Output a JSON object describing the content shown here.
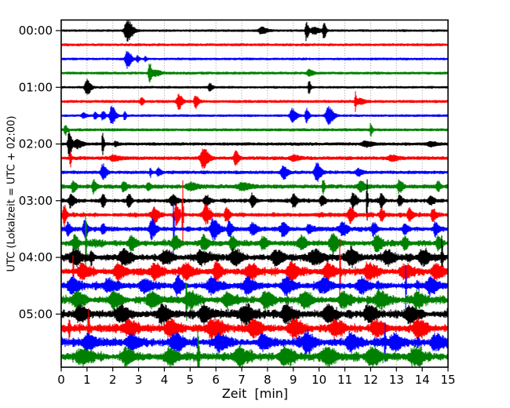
{
  "chart_data": {
    "type": "line",
    "subtype": "seismogram_helicorder_dayplot",
    "title": "",
    "xlabel": "Zeit  [min]",
    "ylabel": "UTC (Lokalzeit = UTC + 02:00)",
    "x_range": [
      0,
      15
    ],
    "x_ticks": [
      0,
      1,
      2,
      3,
      4,
      5,
      6,
      7,
      8,
      9,
      10,
      11,
      12,
      13,
      14,
      15
    ],
    "y_tick_labels": [
      "00:00",
      "01:00",
      "02:00",
      "03:00",
      "04:00",
      "05:00"
    ],
    "y_tick_rows": [
      0,
      4,
      8,
      12,
      16,
      20
    ],
    "minutes_per_line": 15,
    "grid": {
      "vertical_dotted": true,
      "color": "#909090"
    },
    "colors": {
      "border": "#000000",
      "background": "#ffffff"
    },
    "trace_color_cycle": [
      "#000000",
      "#ff0000",
      "#0000ff",
      "#008000"
    ],
    "events_format": "[start_minute, peak_amplitude_px, half_width_min]",
    "traces": [
      {
        "start": "00:00",
        "color": "#000000",
        "noise": 1.0,
        "events": [
          [
            2.55,
            13,
            0.22
          ],
          [
            7.75,
            4,
            0.22
          ],
          [
            9.5,
            12,
            0.09
          ],
          [
            9.8,
            4,
            0.25
          ],
          [
            10.18,
            11,
            0.08
          ]
        ]
      },
      {
        "start": "00:15",
        "color": "#ff0000",
        "noise": 1.2,
        "events": []
      },
      {
        "start": "00:30",
        "color": "#0000ff",
        "noise": 1.0,
        "events": [
          [
            2.55,
            11,
            0.16
          ],
          [
            2.95,
            4,
            0.07
          ],
          [
            3.25,
            3,
            0.06
          ]
        ]
      },
      {
        "start": "00:45",
        "color": "#008000",
        "noise": 1.2,
        "events": [
          [
            3.42,
            13,
            0.09
          ],
          [
            3.65,
            3.5,
            0.2
          ],
          [
            9.6,
            4,
            0.16
          ]
        ]
      },
      {
        "start": "01:00",
        "color": "#000000",
        "noise": 1.0,
        "events": [
          [
            0.98,
            10,
            0.16
          ],
          [
            5.75,
            4.5,
            0.12
          ],
          [
            9.6,
            11,
            0.06
          ]
        ]
      },
      {
        "start": "01:15",
        "color": "#ff0000",
        "noise": 1.3,
        "events": [
          [
            3.1,
            5,
            0.1
          ],
          [
            4.55,
            9,
            0.15
          ],
          [
            5.2,
            8,
            0.12
          ],
          [
            11.4,
            13,
            0.05
          ],
          [
            11.55,
            3.5,
            0.2
          ]
        ]
      },
      {
        "start": "01:30",
        "color": "#0000ff",
        "noise": 1.0,
        "events": [
          [
            0.85,
            3,
            0.12
          ],
          [
            1.3,
            4,
            0.1
          ],
          [
            1.6,
            5,
            0.12
          ],
          [
            1.95,
            12,
            0.15
          ],
          [
            2.45,
            5,
            0.07
          ],
          [
            8.95,
            8,
            0.17
          ],
          [
            9.5,
            9,
            0.1
          ],
          [
            10.35,
            11,
            0.2
          ]
        ]
      },
      {
        "start": "01:45",
        "color": "#008000",
        "noise": 1.3,
        "events": [
          [
            0.15,
            7,
            0.07
          ],
          [
            12.0,
            9,
            0.06
          ]
        ]
      },
      {
        "start": "02:00",
        "color": "#000000",
        "noise": 1.5,
        "events": [
          [
            0.3,
            16,
            0.11
          ],
          [
            0.6,
            5,
            0.2
          ],
          [
            1.6,
            14,
            0.06
          ],
          [
            2.1,
            3,
            0.1
          ],
          [
            11.8,
            3,
            0.3
          ],
          [
            14.3,
            2.5,
            0.25
          ]
        ]
      },
      {
        "start": "02:15",
        "color": "#ff0000",
        "noise": 1.8,
        "events": [
          [
            0.35,
            12,
            0.04
          ],
          [
            2.0,
            3,
            0.25
          ],
          [
            5.5,
            12,
            0.22
          ],
          [
            6.75,
            10,
            0.12
          ],
          [
            9.0,
            3,
            0.25
          ],
          [
            12.8,
            3,
            0.25
          ]
        ]
      },
      {
        "start": "02:30",
        "color": "#0000ff",
        "noise": 1.6,
        "events": [
          [
            1.6,
            10,
            0.14
          ],
          [
            3.45,
            6,
            0.05
          ],
          [
            3.75,
            5,
            0.11
          ],
          [
            8.6,
            8,
            0.17
          ],
          [
            9.9,
            11,
            0.18
          ],
          [
            11.5,
            4,
            0.18
          ]
        ]
      },
      {
        "start": "02:45",
        "color": "#008000",
        "noise": 2.2,
        "events": [
          [
            0.45,
            7,
            0.12
          ],
          [
            1.25,
            8,
            0.1
          ],
          [
            2.4,
            6,
            0.12
          ],
          [
            3.35,
            5,
            0.1
          ],
          [
            5.0,
            4,
            0.3
          ],
          [
            7.0,
            4,
            0.3
          ],
          [
            10.15,
            10,
            0.06
          ],
          [
            11.6,
            6,
            0.18
          ],
          [
            13.1,
            7,
            0.14
          ],
          [
            14.6,
            6,
            0.1
          ]
        ]
      },
      {
        "start": "03:00",
        "color": "#000000",
        "noise": 2.5,
        "events": [
          [
            0.35,
            8,
            0.14
          ],
          [
            1.6,
            9,
            0.1
          ],
          [
            2.6,
            9,
            0.12
          ],
          [
            4.3,
            6,
            0.2
          ],
          [
            5.6,
            7,
            0.14
          ],
          [
            7.4,
            8,
            0.12
          ],
          [
            9.0,
            8,
            0.14
          ],
          [
            10.1,
            7,
            0.12
          ],
          [
            11.3,
            9,
            0.14
          ],
          [
            11.85,
            30,
            0.04
          ],
          [
            12.4,
            8,
            0.12
          ],
          [
            13.1,
            7,
            0.12
          ],
          [
            14.3,
            6,
            0.14
          ]
        ]
      },
      {
        "start": "03:15",
        "color": "#ff0000",
        "noise": 3.0,
        "events": [
          [
            0.1,
            11,
            0.1
          ],
          [
            3.6,
            9,
            0.18
          ],
          [
            4.45,
            12,
            0.13
          ],
          [
            4.7,
            58,
            0.03
          ],
          [
            5.6,
            10,
            0.18
          ],
          [
            6.4,
            9,
            0.14
          ],
          [
            11.2,
            9,
            0.14
          ],
          [
            12.4,
            8,
            0.12
          ],
          [
            13.5,
            8,
            0.14
          ],
          [
            14.4,
            9,
            0.12
          ]
        ]
      },
      {
        "start": "03:30",
        "color": "#0000ff",
        "noise": 3.0,
        "events": [
          [
            0.25,
            8,
            0.12
          ],
          [
            0.9,
            10,
            0.14
          ],
          [
            1.6,
            7,
            0.12
          ],
          [
            3.5,
            12,
            0.18
          ],
          [
            4.35,
            52,
            0.03
          ],
          [
            5.9,
            13,
            0.22
          ],
          [
            6.5,
            9,
            0.14
          ],
          [
            7.4,
            7,
            0.18
          ],
          [
            8.6,
            8,
            0.18
          ],
          [
            9.6,
            6,
            0.14
          ],
          [
            10.9,
            9,
            0.18
          ],
          [
            12.1,
            8,
            0.14
          ],
          [
            13.3,
            7,
            0.14
          ],
          [
            14.5,
            8,
            0.14
          ]
        ]
      },
      {
        "start": "03:45",
        "color": "#008000",
        "noise": 4.0,
        "events": [
          [
            0.5,
            9,
            0.14
          ],
          [
            0.95,
            42,
            0.03
          ],
          [
            2.7,
            8,
            0.18
          ],
          [
            4.4,
            9,
            0.18
          ],
          [
            5.5,
            8,
            0.18
          ],
          [
            6.6,
            8,
            0.18
          ],
          [
            7.8,
            7,
            0.18
          ],
          [
            9.3,
            8,
            0.18
          ],
          [
            10.5,
            12,
            0.2
          ],
          [
            12.2,
            9,
            0.18
          ],
          [
            13.3,
            9,
            0.14
          ],
          [
            14.6,
            10,
            0.12
          ]
        ]
      },
      {
        "start": "04:00",
        "color": "#000000",
        "noise": 5.0,
        "events": [
          [
            0.5,
            8,
            0.28
          ],
          [
            1.15,
            10,
            0.07
          ],
          [
            2.4,
            9,
            0.28
          ],
          [
            4.0,
            8,
            0.28
          ],
          [
            5.4,
            8,
            0.28
          ],
          [
            6.7,
            9,
            0.28
          ],
          [
            8.3,
            9,
            0.28
          ],
          [
            9.8,
            8,
            0.28
          ],
          [
            11.2,
            9,
            0.28
          ],
          [
            12.6,
            8,
            0.28
          ],
          [
            14.0,
            8,
            0.28
          ],
          [
            14.75,
            26,
            0.04
          ]
        ]
      },
      {
        "start": "04:15",
        "color": "#ff0000",
        "noise": 5.0,
        "events": [
          [
            0.45,
            22,
            0.03
          ],
          [
            0.8,
            9,
            0.28
          ],
          [
            2.2,
            9,
            0.28
          ],
          [
            3.6,
            9,
            0.28
          ],
          [
            4.8,
            10,
            0.28
          ],
          [
            6.0,
            12,
            0.2
          ],
          [
            7.3,
            9,
            0.28
          ],
          [
            8.9,
            10,
            0.28
          ],
          [
            10.3,
            9,
            0.28
          ],
          [
            10.8,
            38,
            0.03
          ],
          [
            11.9,
            9,
            0.28
          ],
          [
            13.3,
            9,
            0.28
          ],
          [
            14.5,
            9,
            0.28
          ]
        ]
      },
      {
        "start": "04:30",
        "color": "#0000ff",
        "noise": 5.0,
        "events": [
          [
            0.4,
            8,
            0.28
          ],
          [
            1.8,
            9,
            0.28
          ],
          [
            3.2,
            8,
            0.28
          ],
          [
            4.5,
            11,
            0.2
          ],
          [
            5.8,
            9,
            0.28
          ],
          [
            7.2,
            9,
            0.28
          ],
          [
            8.7,
            10,
            0.28
          ],
          [
            10.1,
            9,
            0.28
          ],
          [
            11.6,
            9,
            0.28
          ],
          [
            13.35,
            40,
            0.03
          ],
          [
            14.3,
            9,
            0.28
          ]
        ]
      },
      {
        "start": "04:45",
        "color": "#008000",
        "noise": 5.5,
        "events": [
          [
            0.6,
            9,
            0.28
          ],
          [
            2.0,
            9,
            0.28
          ],
          [
            3.5,
            9,
            0.28
          ],
          [
            4.85,
            32,
            0.03
          ],
          [
            5.0,
            9,
            0.28
          ],
          [
            6.4,
            9,
            0.28
          ],
          [
            7.9,
            9,
            0.28
          ],
          [
            9.4,
            10,
            0.28
          ],
          [
            10.9,
            9,
            0.28
          ],
          [
            12.3,
            9,
            0.28
          ],
          [
            13.8,
            9,
            0.28
          ]
        ]
      },
      {
        "start": "05:00",
        "color": "#000000",
        "noise": 6.0,
        "events": [
          [
            0.7,
            9,
            0.32
          ],
          [
            2.3,
            9,
            0.32
          ],
          [
            3.9,
            9,
            0.32
          ],
          [
            5.5,
            9,
            0.32
          ],
          [
            7.1,
            10,
            0.32
          ],
          [
            8.7,
            9,
            0.32
          ],
          [
            10.3,
            9,
            0.32
          ],
          [
            11.9,
            9,
            0.32
          ],
          [
            13.5,
            9,
            0.32
          ]
        ]
      },
      {
        "start": "05:15",
        "color": "#ff0000",
        "noise": 6.0,
        "events": [
          [
            0.3,
            12,
            0.05
          ],
          [
            1.05,
            28,
            0.04
          ],
          [
            2.6,
            9,
            0.32
          ],
          [
            4.2,
            9,
            0.32
          ],
          [
            5.8,
            10,
            0.32
          ],
          [
            7.4,
            9,
            0.32
          ],
          [
            9.0,
            10,
            0.32
          ],
          [
            10.6,
            9,
            0.32
          ],
          [
            12.2,
            9,
            0.32
          ],
          [
            13.8,
            10,
            0.32
          ]
        ]
      },
      {
        "start": "05:30",
        "color": "#0000ff",
        "noise": 6.0,
        "events": [
          [
            1.0,
            9,
            0.32
          ],
          [
            2.7,
            9,
            0.32
          ],
          [
            4.4,
            10,
            0.32
          ],
          [
            6.1,
            9,
            0.32
          ],
          [
            7.8,
            9,
            0.32
          ],
          [
            9.5,
            10,
            0.32
          ],
          [
            11.2,
            9,
            0.32
          ],
          [
            12.55,
            28,
            0.03
          ],
          [
            12.9,
            9,
            0.32
          ],
          [
            14.5,
            9,
            0.32
          ]
        ]
      },
      {
        "start": "05:45",
        "color": "#008000",
        "noise": 6.5,
        "events": [
          [
            0.8,
            9,
            0.32
          ],
          [
            2.5,
            9,
            0.32
          ],
          [
            4.2,
            9,
            0.32
          ],
          [
            5.3,
            36,
            0.05
          ],
          [
            6.9,
            9,
            0.32
          ],
          [
            8.6,
            10,
            0.32
          ],
          [
            10.3,
            9,
            0.32
          ],
          [
            12.0,
            9,
            0.32
          ],
          [
            13.7,
            9,
            0.32
          ]
        ]
      }
    ]
  }
}
